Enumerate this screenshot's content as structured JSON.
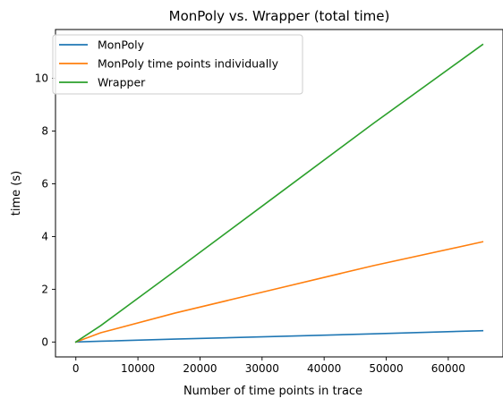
{
  "chart_data": {
    "type": "line",
    "title": "MonPoly vs. Wrapper (total time)",
    "xlabel": "Number of time points in trace",
    "ylabel": "time (s)",
    "xlim": [
      -3280,
      68816
    ],
    "ylim": [
      -0.5648,
      11.85
    ],
    "xticks": [
      0,
      10000,
      20000,
      30000,
      40000,
      50000,
      60000
    ],
    "yticks": [
      0,
      2,
      4,
      6,
      8,
      10
    ],
    "grid": false,
    "legend": "top-left",
    "series": [
      {
        "name": "MonPoly",
        "color": "#1f77b4",
        "x": [
          0,
          4000,
          16000,
          32000,
          48000,
          65536
        ],
        "y": [
          0,
          0.03,
          0.11,
          0.21,
          0.31,
          0.43
        ]
      },
      {
        "name": "MonPoly time points individually",
        "color": "#ff7f0e",
        "x": [
          0,
          4000,
          16000,
          32000,
          48000,
          65536
        ],
        "y": [
          0,
          0.35,
          1.1,
          2.0,
          2.9,
          3.8
        ]
      },
      {
        "name": "Wrapper",
        "color": "#2ca02c",
        "x": [
          0,
          4000,
          16000,
          32000,
          48000,
          65536
        ],
        "y": [
          0,
          0.62,
          2.7,
          5.5,
          8.3,
          11.28
        ]
      }
    ]
  }
}
